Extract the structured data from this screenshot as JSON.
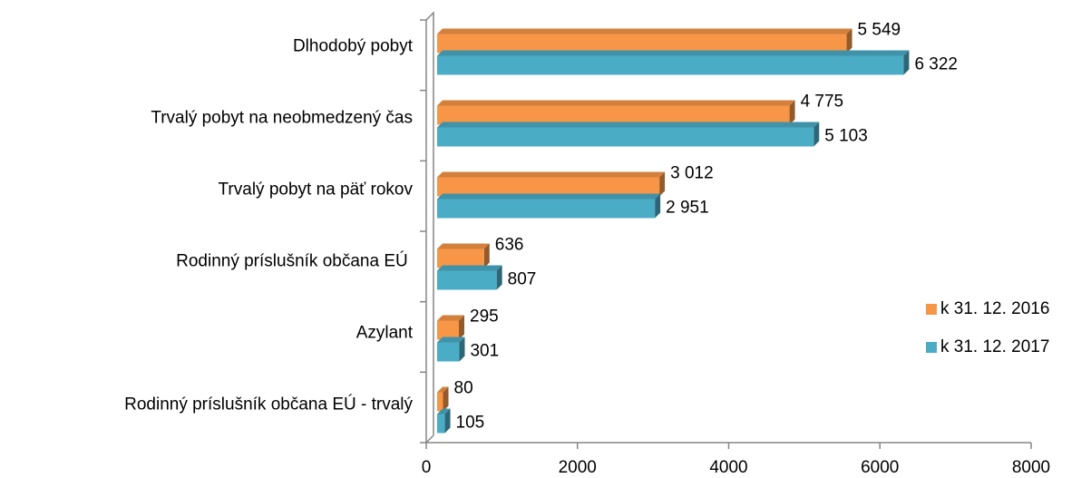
{
  "chart_data": {
    "type": "bar",
    "orientation": "horizontal",
    "categories": [
      "Dlhodobý pobyt",
      "Trvalý pobyt na neobmedzený čas",
      "Trvalý pobyt na päť rokov",
      "Rodinný príslušník občana EÚ ",
      "Azylant",
      "Rodinný príslušník občana EÚ - trvalý"
    ],
    "series": [
      {
        "name": "k 31. 12. 2016",
        "color": "#F79646",
        "values": [
          5549,
          4775,
          3012,
          636,
          295,
          80
        ],
        "value_labels": [
          "5 549",
          "4 775",
          "3 012",
          "636",
          "295",
          "80"
        ]
      },
      {
        "name": "k 31. 12. 2017",
        "color": "#4BACC6",
        "values": [
          6322,
          5103,
          2951,
          807,
          301,
          105
        ],
        "value_labels": [
          "6 322",
          "5 103",
          "2 951",
          "807",
          "301",
          "105"
        ]
      }
    ],
    "xlim": [
      0,
      8000
    ],
    "xticks": [
      0,
      2000,
      4000,
      6000,
      8000
    ],
    "legend": "right"
  }
}
